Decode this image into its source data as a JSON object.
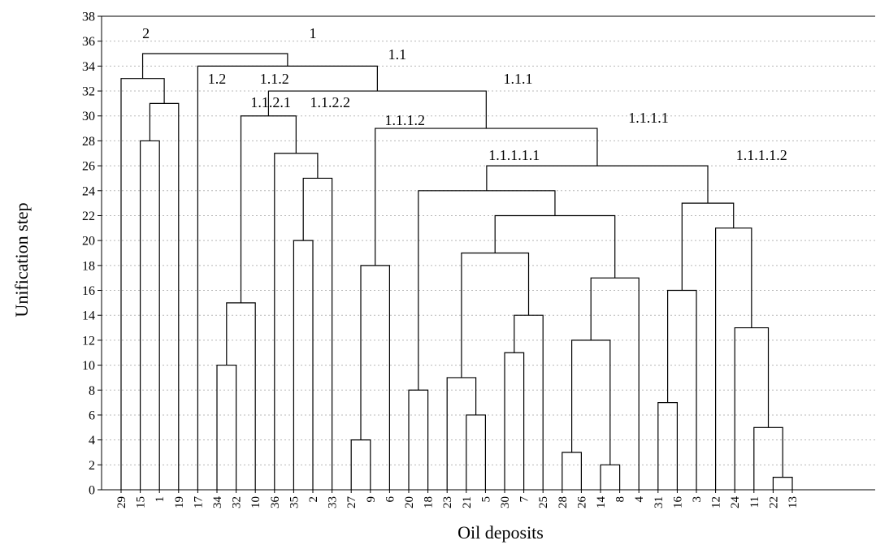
{
  "chart_data": {
    "type": "dendrogram",
    "xlabel": "Oil deposits",
    "ylabel": "Unification step",
    "ylim": [
      0,
      38
    ],
    "yticks": [
      0,
      2,
      4,
      6,
      8,
      10,
      12,
      14,
      16,
      18,
      20,
      22,
      24,
      26,
      28,
      30,
      32,
      34,
      36,
      38
    ],
    "grid": "horizontal dotted",
    "leaves": [
      "29",
      "15",
      "1",
      "19",
      "17",
      "34",
      "32",
      "10",
      "36",
      "35",
      "2",
      "33",
      "27",
      "9",
      "6",
      "20",
      "18",
      "23",
      "21",
      "5",
      "30",
      "7",
      "25",
      "28",
      "26",
      "14",
      "8",
      "4",
      "31",
      "16",
      "3",
      "12",
      "24",
      "11",
      "22",
      "13"
    ],
    "merges": [
      {
        "children": [
          "22",
          "13"
        ],
        "height": 1
      },
      {
        "children": [
          "14",
          "8"
        ],
        "height": 2
      },
      {
        "children": [
          "28",
          "26"
        ],
        "height": 3
      },
      {
        "children": [
          "27",
          "9"
        ],
        "height": 4
      },
      {
        "children": [
          "11",
          "22+13"
        ],
        "height": 5
      },
      {
        "children": [
          "21",
          "5"
        ],
        "height": 6
      },
      {
        "children": [
          "31",
          "16"
        ],
        "height": 7
      },
      {
        "children": [
          "20",
          "18"
        ],
        "height": 8
      },
      {
        "children": [
          "23",
          "21+5"
        ],
        "height": 9
      },
      {
        "children": [
          "34",
          "32"
        ],
        "height": 10
      },
      {
        "children": [
          "30",
          "7"
        ],
        "height": 11
      },
      {
        "children": [
          "28+26",
          "14+8"
        ],
        "height": 12
      },
      {
        "children": [
          "24",
          "11+22+13"
        ],
        "height": 13
      },
      {
        "children": [
          "30+7",
          "25"
        ],
        "height": 14
      },
      {
        "children": [
          "34+32",
          "10"
        ],
        "height": 15
      },
      {
        "children": [
          "31+16",
          "3"
        ],
        "height": 16
      },
      {
        "children": [
          "28+26+14+8",
          "4"
        ],
        "height": 17
      },
      {
        "children": [
          "27+9",
          "6"
        ],
        "height": 18
      },
      {
        "children": [
          "23+21+5",
          "30+7+25"
        ],
        "height": 19
      },
      {
        "children": [
          "35",
          "2"
        ],
        "height": 20
      },
      {
        "children": [
          "12",
          "24+11+22+13"
        ],
        "height": 21
      },
      {
        "children": [
          "23..25",
          "28..4"
        ],
        "height": 22
      },
      {
        "children": [
          "31+16+3",
          "12..13"
        ],
        "height": 23
      },
      {
        "children": [
          "20+18",
          "23..4"
        ],
        "height": 24
      },
      {
        "children": [
          "35+2",
          "33"
        ],
        "height": 25
      },
      {
        "children": [
          "20..4",
          "31..13"
        ],
        "height": 26
      },
      {
        "children": [
          "36",
          "35+2+33"
        ],
        "height": 27
      },
      {
        "children": [
          "15",
          "1"
        ],
        "height": 28
      },
      {
        "children": [
          "27+9+6",
          "20..13"
        ],
        "height": 29
      },
      {
        "children": [
          "34+32+10",
          "36..33"
        ],
        "height": 30
      },
      {
        "children": [
          "15+1",
          "19"
        ],
        "height": 31
      },
      {
        "children": [
          "34..33",
          "27..13"
        ],
        "height": 32
      },
      {
        "children": [
          "29",
          "15+1+19"
        ],
        "height": 33
      },
      {
        "children": [
          "17",
          "34..13"
        ],
        "height": 34
      },
      {
        "children": [
          "29..19",
          "17..13"
        ],
        "height": 35
      }
    ],
    "annotations": [
      {
        "text": "2",
        "step": 35
      },
      {
        "text": "1",
        "step": 35
      },
      {
        "text": "1.1",
        "step": 34
      },
      {
        "text": "1.2",
        "step": 34
      },
      {
        "text": "1.1.2",
        "step": 32
      },
      {
        "text": "1.1.1",
        "step": 32
      },
      {
        "text": "1.1.2.1",
        "step": 30
      },
      {
        "text": "1.1.2.2",
        "step": 30
      },
      {
        "text": "1.1.1.2",
        "step": 29
      },
      {
        "text": "1.1.1.1",
        "step": 29
      },
      {
        "text": "1.1.1.1.1",
        "step": 26
      },
      {
        "text": "1.1.1.1.2",
        "step": 26
      }
    ]
  }
}
